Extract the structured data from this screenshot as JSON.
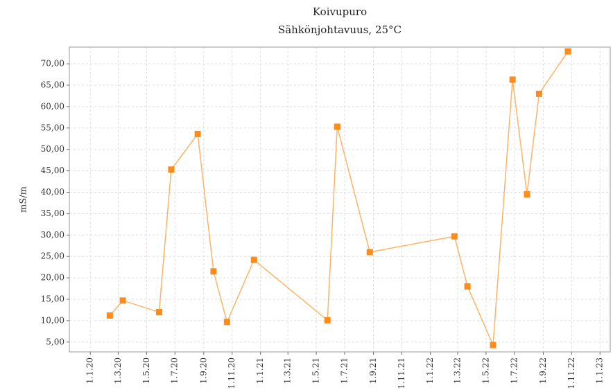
{
  "chart_data": {
    "type": "line",
    "title": "Koivupuro",
    "subtitle": "Sähkönjohtavuus, 25°C",
    "y_label": "mS/m",
    "series": [
      {
        "name": "Sähkönjohtavuus",
        "color": "#ff8c1a",
        "line_color": "#ffb366",
        "x": [
          42,
          70,
          148,
          174,
          231,
          265,
          294,
          352,
          510,
          531,
          601,
          783,
          811,
          866,
          908,
          939,
          965,
          1027
        ],
        "values": [
          11.2,
          14.7,
          12.0,
          45.3,
          53.6,
          21.5,
          9.7,
          24.2,
          10.1,
          55.3,
          26.0,
          29.7,
          18.0,
          4.3,
          66.3,
          39.5,
          63.0,
          72.9
        ]
      }
    ],
    "xlim": [
      -45,
      1118
    ],
    "xticks": [
      {
        "value": 0,
        "label": "1.1.20"
      },
      {
        "value": 60,
        "label": "1.3.20"
      },
      {
        "value": 121,
        "label": "1.5.20"
      },
      {
        "value": 182,
        "label": "1.7.20"
      },
      {
        "value": 244,
        "label": "1.9.20"
      },
      {
        "value": 305,
        "label": "1.11.20"
      },
      {
        "value": 366,
        "label": "1.1.21"
      },
      {
        "value": 425,
        "label": "1.3.21"
      },
      {
        "value": 486,
        "label": "1.5.21"
      },
      {
        "value": 547,
        "label": "1.7.21"
      },
      {
        "value": 609,
        "label": "1.9.21"
      },
      {
        "value": 670,
        "label": "1.11.21"
      },
      {
        "value": 731,
        "label": "1.1.22"
      },
      {
        "value": 790,
        "label": "1.3.22"
      },
      {
        "value": 851,
        "label": "1.5.22"
      },
      {
        "value": 912,
        "label": "1.7.22"
      },
      {
        "value": 974,
        "label": "1.9.22"
      },
      {
        "value": 1035,
        "label": "1.11.22"
      },
      {
        "value": 1096,
        "label": "1.1.23"
      }
    ],
    "ylim": [
      2.7,
      73.9
    ],
    "yticks": [
      {
        "value": 5,
        "label": "5,00"
      },
      {
        "value": 10,
        "label": "10,00"
      },
      {
        "value": 15,
        "label": "15,00"
      },
      {
        "value": 20,
        "label": "20,00"
      },
      {
        "value": 25,
        "label": "25,00"
      },
      {
        "value": 30,
        "label": "30,00"
      },
      {
        "value": 35,
        "label": "35,00"
      },
      {
        "value": 40,
        "label": "40,00"
      },
      {
        "value": 45,
        "label": "45,00"
      },
      {
        "value": 50,
        "label": "50,00"
      },
      {
        "value": 55,
        "label": "55,00"
      },
      {
        "value": 60,
        "label": "60,00"
      },
      {
        "value": 65,
        "label": "65,00"
      },
      {
        "value": 70,
        "label": "70,00"
      }
    ],
    "grid": true
  }
}
